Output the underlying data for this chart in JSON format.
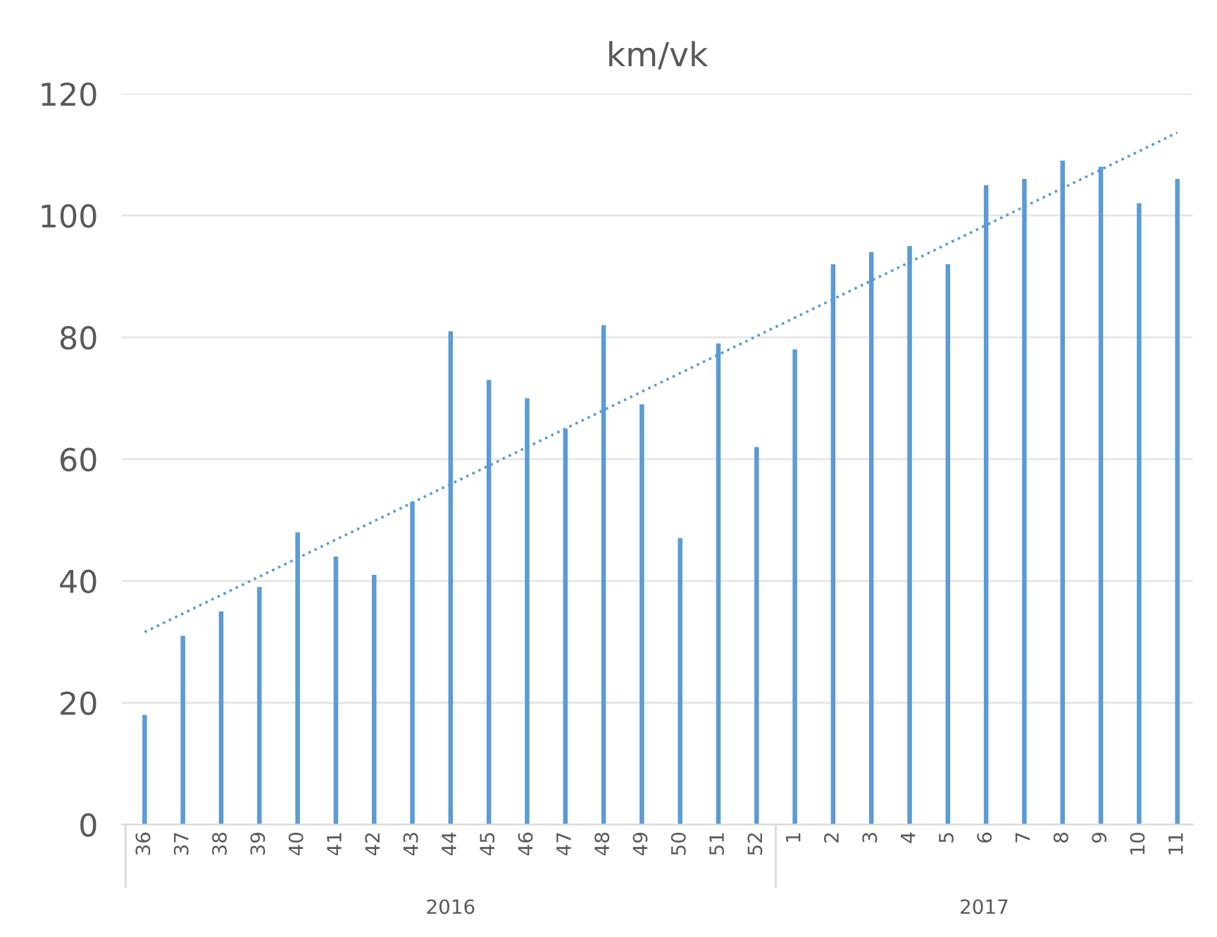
{
  "chart_data": {
    "type": "bar",
    "title": "km/vk",
    "categories": [
      "36",
      "37",
      "38",
      "39",
      "40",
      "41",
      "42",
      "43",
      "44",
      "45",
      "46",
      "47",
      "48",
      "49",
      "50",
      "51",
      "52",
      "1",
      "2",
      "3",
      "4",
      "5",
      "6",
      "7",
      "8",
      "9",
      "10",
      "11"
    ],
    "series": [
      {
        "color": "#5b9bd5",
        "values": [
          18,
          31,
          35,
          39,
          48,
          44,
          41,
          53,
          81,
          73,
          70,
          65,
          82,
          69,
          47,
          79,
          62,
          78,
          92,
          94,
          95,
          92,
          105,
          106,
          109,
          108,
          102,
          106
        ]
      },
      {
        "type": "line",
        "color": "#5b9bd5",
        "line_style": "dotted",
        "x": [
          "36",
          "11"
        ],
        "values": [
          31.6,
          113.6
        ]
      }
    ],
    "ylim": [
      0,
      120
    ],
    "yticks": [
      0,
      20,
      40,
      60,
      80,
      100,
      120
    ],
    "grid": "y",
    "annotations": [
      "2016",
      "2017"
    ]
  }
}
